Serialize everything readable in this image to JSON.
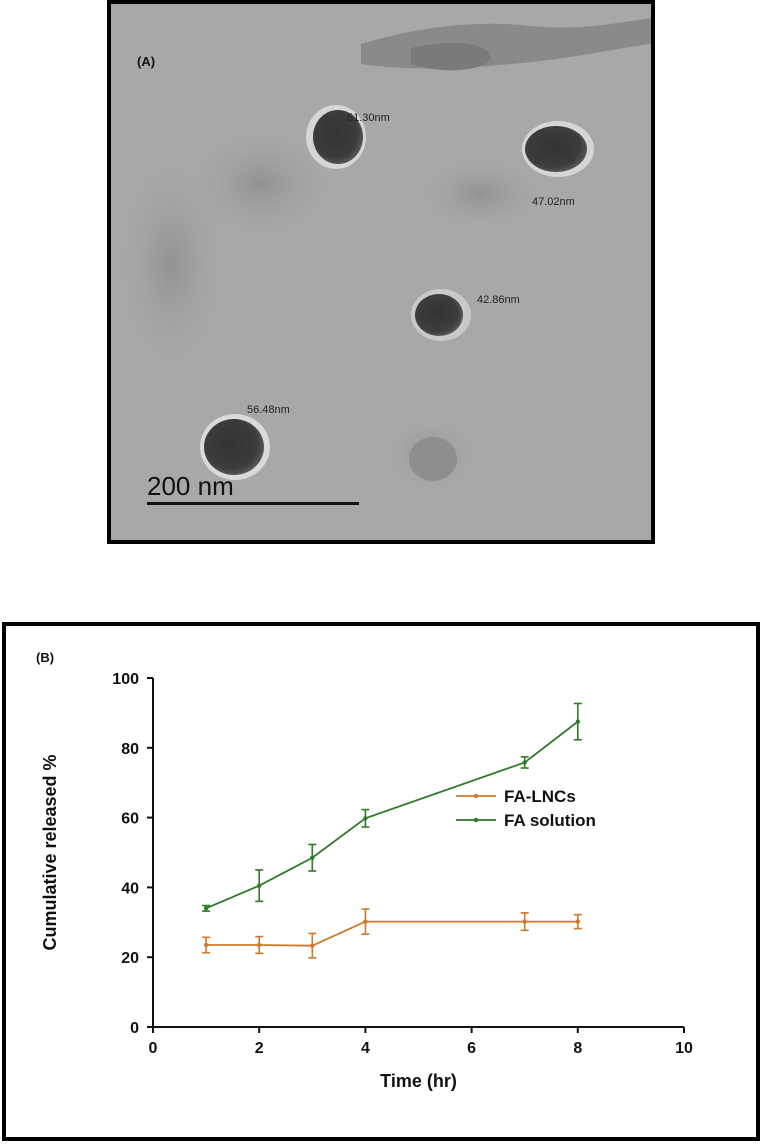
{
  "panel_a": {
    "label": "(A)",
    "particle_sizes": [
      "51.30nm",
      "47.02nm",
      "42.86nm",
      "56.48nm"
    ],
    "scale_bar_label": "200 nm"
  },
  "chart_data": {
    "panel_label": "(B)",
    "type": "line",
    "xlabel": "Time (hr)",
    "ylabel": "Cumulative released %",
    "xlim": [
      0,
      10
    ],
    "ylim": [
      0,
      100
    ],
    "x_ticks": [
      0,
      2,
      4,
      6,
      8,
      10
    ],
    "y_ticks": [
      0,
      20,
      40,
      60,
      80,
      100
    ],
    "grid": false,
    "legend_position": "center-right",
    "series": [
      {
        "name": "FA-LNCs",
        "color": "#cc7a2a",
        "x": [
          1,
          2,
          3,
          4,
          7,
          8
        ],
        "y": [
          23.5,
          23.5,
          23.3,
          30.2,
          30.2,
          30.2
        ],
        "err": [
          2.2,
          2.4,
          3.5,
          3.6,
          2.5,
          2.0
        ]
      },
      {
        "name": "FA solution",
        "color": "#2e7a27",
        "x": [
          1,
          2,
          3,
          4,
          7,
          8
        ],
        "y": [
          34.0,
          40.5,
          48.5,
          59.8,
          75.8,
          87.5
        ],
        "err": [
          0.8,
          4.5,
          3.8,
          2.5,
          1.6,
          5.2
        ]
      }
    ]
  }
}
